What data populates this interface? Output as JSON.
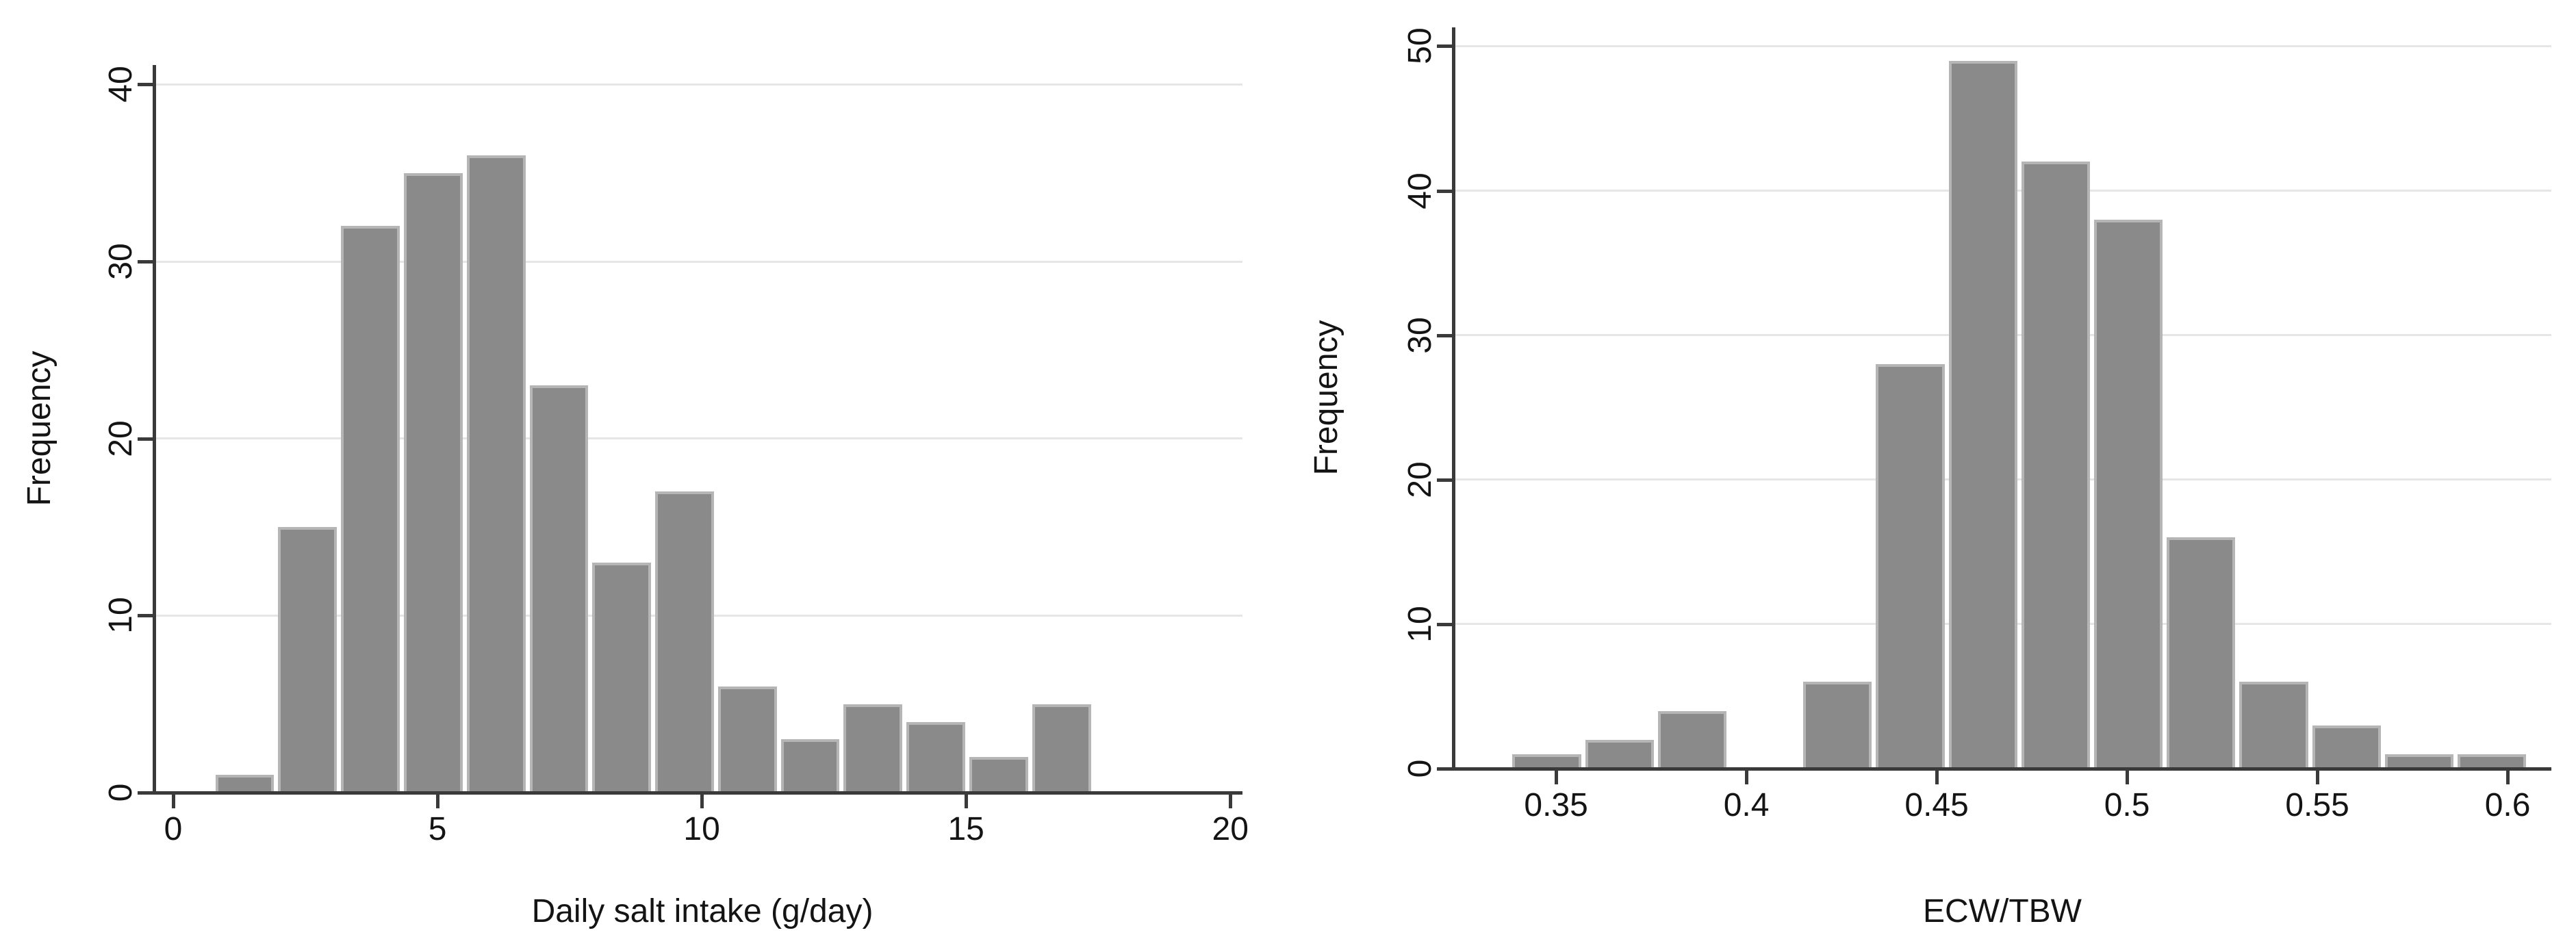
{
  "figure": {
    "background": "#ffffff",
    "bar_fill": "#8a8a8a",
    "bar_outline": "#b5b5b5",
    "grid_color": "#e6e6e6",
    "axis_color": "#3a3a3a",
    "text_color": "#141414"
  },
  "chart_data": [
    {
      "type": "bar",
      "subtype": "histogram",
      "title": "",
      "xlabel": "Daily salt intake (g/day)",
      "ylabel": "Frequency",
      "bin_start": 0.76,
      "bin_width": 1.1886,
      "counts": [
        1,
        15,
        32,
        35,
        36,
        23,
        13,
        17,
        6,
        3,
        5,
        4,
        2,
        5
      ],
      "xticks": [
        0,
        5,
        10,
        15,
        20
      ],
      "xtick_labels": [
        "0",
        "5",
        "10",
        "15",
        "20"
      ],
      "yticks": [
        0,
        10,
        20,
        30,
        40
      ],
      "ytick_labels": [
        "0",
        "10",
        "20",
        "30",
        "40"
      ],
      "xlim": [
        -0.3627,
        20.23
      ],
      "ylim": [
        0,
        41.1
      ],
      "grid": "horizontal",
      "legend": "none"
    },
    {
      "type": "bar",
      "subtype": "histogram",
      "title": "",
      "xlabel": "ECW/TBW",
      "ylabel": "Frequency",
      "bin_start": 0.338,
      "bin_width": 0.0191,
      "counts": [
        1,
        2,
        4,
        0,
        6,
        28,
        49,
        42,
        38,
        16,
        6,
        3,
        1,
        1
      ],
      "xticks": [
        0.35,
        0.4,
        0.45,
        0.5,
        0.55,
        0.6
      ],
      "xtick_labels": [
        "0.35",
        "0.4",
        "0.45",
        "0.5",
        "0.55",
        "0.6"
      ],
      "yticks": [
        0,
        10,
        20,
        30,
        40,
        50
      ],
      "ytick_labels": [
        "0",
        "10",
        "20",
        "30",
        "40",
        "50"
      ],
      "xlim": [
        0.323,
        0.6115
      ],
      "ylim": [
        0,
        51.3
      ],
      "grid": "horizontal",
      "legend": "none"
    }
  ]
}
